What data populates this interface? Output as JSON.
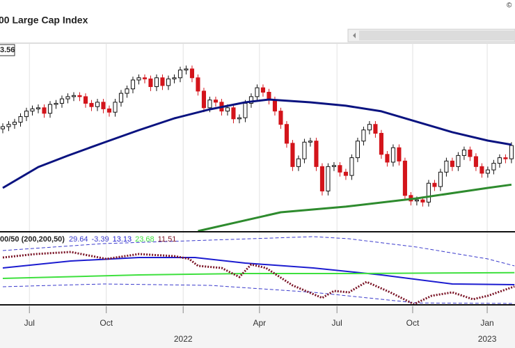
{
  "chart_data": [
    {
      "type": "candlestick",
      "title": "00 Large Cap Index",
      "annotation": "3.56",
      "x": [
        0,
        1,
        2,
        3,
        4,
        5,
        6,
        7,
        8,
        9,
        10,
        11,
        12,
        13,
        14,
        15,
        16,
        17,
        18,
        19,
        20,
        21,
        22,
        23,
        24,
        25,
        26,
        27,
        28,
        29,
        30,
        31,
        32,
        33,
        34,
        35,
        36,
        37,
        38,
        39,
        40,
        41,
        42,
        43,
        44,
        45,
        46,
        47,
        48,
        49,
        50,
        51,
        52,
        53,
        54,
        55,
        56,
        57,
        58,
        59,
        60,
        61,
        62,
        63,
        64,
        65,
        66,
        67,
        68,
        69,
        70,
        71,
        72,
        73,
        74,
        75,
        76,
        77,
        78,
        79,
        80,
        81,
        82,
        83,
        84,
        85,
        86
      ],
      "open": [
        4240,
        4260,
        4280,
        4300,
        4350,
        4400,
        4420,
        4430,
        4380,
        4460,
        4470,
        4510,
        4530,
        4540,
        4530,
        4470,
        4440,
        4480,
        4420,
        4390,
        4480,
        4560,
        4600,
        4680,
        4700,
        4690,
        4620,
        4700,
        4630,
        4690,
        4700,
        4770,
        4780,
        4700,
        4580,
        4430,
        4500,
        4480,
        4400,
        4430,
        4330,
        4340,
        4470,
        4530,
        4610,
        4570,
        4500,
        4400,
        4280,
        4110,
        3900,
        3970,
        4120,
        4130,
        3900,
        3680,
        3900,
        3910,
        3850,
        3820,
        3980,
        4130,
        4230,
        4280,
        4200,
        4010,
        3940,
        4070,
        3950,
        3640,
        3590,
        3600,
        3580,
        3750,
        3720,
        3850,
        3950,
        3900,
        4000,
        4050,
        3990,
        3900,
        3840,
        3870,
        3930,
        3980,
        3970
      ],
      "high": [
        4290,
        4310,
        4330,
        4380,
        4430,
        4450,
        4460,
        4460,
        4490,
        4500,
        4540,
        4560,
        4570,
        4570,
        4560,
        4500,
        4510,
        4510,
        4450,
        4510,
        4590,
        4630,
        4710,
        4730,
        4730,
        4720,
        4730,
        4730,
        4720,
        4730,
        4800,
        4810,
        4810,
        4730,
        4610,
        4530,
        4530,
        4510,
        4460,
        4460,
        4370,
        4500,
        4560,
        4640,
        4640,
        4600,
        4530,
        4430,
        4310,
        4140,
        4000,
        4150,
        4160,
        4160,
        3930,
        3930,
        3940,
        3940,
        3880,
        4010,
        4160,
        4260,
        4310,
        4310,
        4230,
        4040,
        4100,
        4100,
        3980,
        3670,
        3630,
        3630,
        3780,
        3780,
        3880,
        3980,
        3980,
        4030,
        4080,
        4080,
        4020,
        3930,
        3900,
        3960,
        4010,
        4010,
        4120
      ],
      "low": [
        4200,
        4220,
        4240,
        4260,
        4310,
        4360,
        4380,
        4340,
        4340,
        4420,
        4430,
        4470,
        4490,
        4490,
        4430,
        4400,
        4400,
        4380,
        4350,
        4350,
        4440,
        4520,
        4560,
        4640,
        4650,
        4580,
        4580,
        4590,
        4590,
        4650,
        4660,
        4730,
        4660,
        4540,
        4390,
        4390,
        4440,
        4360,
        4360,
        4290,
        4290,
        4300,
        4430,
        4490,
        4530,
        4460,
        4360,
        4240,
        4070,
        3860,
        3860,
        3930,
        4080,
        3860,
        3640,
        3640,
        3860,
        3810,
        3780,
        3780,
        3940,
        4090,
        4190,
        4160,
        3970,
        3900,
        3900,
        3910,
        3600,
        3550,
        3550,
        3540,
        3540,
        3680,
        3680,
        3810,
        3860,
        3860,
        3960,
        3950,
        3860,
        3800,
        3800,
        3830,
        3890,
        3930,
        3930
      ],
      "close": [
        4260,
        4280,
        4300,
        4350,
        4400,
        4420,
        4430,
        4380,
        4460,
        4470,
        4510,
        4530,
        4540,
        4530,
        4470,
        4440,
        4480,
        4420,
        4390,
        4480,
        4560,
        4600,
        4680,
        4700,
        4690,
        4620,
        4700,
        4630,
        4690,
        4700,
        4770,
        4780,
        4700,
        4580,
        4430,
        4500,
        4480,
        4400,
        4430,
        4330,
        4340,
        4470,
        4530,
        4610,
        4570,
        4500,
        4400,
        4280,
        4110,
        3900,
        3970,
        4120,
        4130,
        3900,
        3680,
        3900,
        3910,
        3850,
        3820,
        3980,
        4130,
        4230,
        4280,
        4200,
        4010,
        3940,
        4070,
        3950,
        3640,
        3590,
        3600,
        3580,
        3750,
        3720,
        3850,
        3950,
        3900,
        4000,
        4050,
        3990,
        3900,
        3840,
        3870,
        3930,
        3980,
        3970,
        4090
      ],
      "up_color": "#ffffff",
      "down_color": "#d3141b",
      "overlays": [
        {
          "color": "#0a1380",
          "x": [
            0,
            6,
            11,
            17,
            23,
            29,
            35,
            41,
            45,
            52,
            58,
            64,
            70,
            76,
            82,
            86
          ],
          "values": [
            3708,
            3896,
            3999,
            4115,
            4228,
            4335,
            4416,
            4479,
            4504,
            4479,
            4448,
            4398,
            4304,
            4210,
            4134,
            4097
          ]
        },
        {
          "color": "#2e8b2e",
          "x": [
            33,
            47,
            58,
            70,
            82,
            86
          ],
          "values": [
            3319,
            3488,
            3539,
            3614,
            3708,
            3737
          ]
        }
      ],
      "xlim": [
        -0.47,
        86.6
      ],
      "ylim": [
        3319,
        5012
      ],
      "xticks": [
        {
          "value": 4.5,
          "label": "Jul"
        },
        {
          "value": 17.5,
          "label": "Oct"
        },
        {
          "value": 30.5,
          "label": "2022"
        },
        {
          "value": 43.4,
          "label": "Apr"
        },
        {
          "value": 56.5,
          "label": "Jul"
        },
        {
          "value": 69.3,
          "label": "Oct"
        },
        {
          "value": 81.9,
          "label": "Jan"
        }
      ],
      "year_ticks": [
        {
          "value": 81.9,
          "label": "2023"
        }
      ]
    },
    {
      "type": "line",
      "label": "00/50 (200,200,50)",
      "series": [
        {
          "color": "#3a3acc",
          "style": "dashed",
          "x": [
            0,
            17,
            35,
            52.5,
            58.5,
            70,
            82,
            86.5
          ],
          "values": [
            43.1,
            49.22,
            52.28,
            55.34,
            53.5,
            46.16,
            35.76,
            29.64
          ]
        },
        {
          "color": "#3a3acc",
          "style": "dashed",
          "x": [
            0,
            17,
            35,
            52.5,
            64,
            70,
            86.5
          ],
          "values": [
            11.28,
            13.73,
            12.5,
            6.38,
            0.26,
            -3.0,
            -3.39
          ]
        },
        {
          "color": "#1c1cd0",
          "style": "solid",
          "x": [
            0,
            11.5,
            23,
            32.5,
            41,
            52.5,
            64,
            76,
            86.5
          ],
          "values": [
            27.8,
            33.92,
            36.98,
            36.98,
            32.09,
            27.8,
            21.68,
            13.73,
            13.13
          ]
        },
        {
          "color": "#3ee03e",
          "style": "solid",
          "x": [
            0,
            23,
            41,
            58.5,
            86.5
          ],
          "values": [
            18.62,
            21.68,
            22.91,
            22.91,
            23.68
          ]
        },
        {
          "color": "#7a1426",
          "style": "dotted",
          "x": [
            0,
            5.5,
            11.5,
            17.5,
            23,
            29,
            31.5,
            33,
            37,
            40,
            42,
            44.5,
            49,
            54,
            56,
            58.5,
            61.5,
            65.5,
            69.5,
            72.5,
            76,
            79.5,
            82,
            86.5
          ],
          "values": [
            36.98,
            40.04,
            41.88,
            35.76,
            40.04,
            38.21,
            35.76,
            29.64,
            27.8,
            19.85,
            30.86,
            27.8,
            12.5,
            1.49,
            7.61,
            6.38,
            15.56,
            6.38,
            -4.02,
            3.32,
            6.38,
            0.26,
            3.32,
            11.51
          ]
        }
      ],
      "xlim": [
        -0.47,
        86.6
      ],
      "ylim": [
        -5.86,
        58.4
      ]
    }
  ],
  "copyright": "©"
}
